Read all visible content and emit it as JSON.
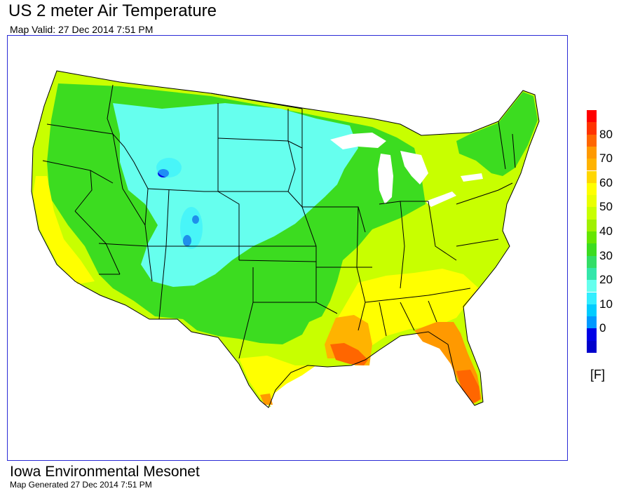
{
  "title": "US 2 meter Air Temperature",
  "subtitle": "Map Valid: 27 Dec 2014 7:51 PM",
  "legend": {
    "unit": "[F]",
    "ticks": [
      "80",
      "70",
      "60",
      "50",
      "40",
      "30",
      "20",
      "10",
      "0"
    ],
    "bands": [
      {
        "from": 85,
        "to": 90,
        "color": "#ff0000"
      },
      {
        "from": 80,
        "to": 85,
        "color": "#ff3300"
      },
      {
        "from": 75,
        "to": 80,
        "color": "#ff6600"
      },
      {
        "from": 70,
        "to": 75,
        "color": "#ff9900"
      },
      {
        "from": 65,
        "to": 70,
        "color": "#ffb300"
      },
      {
        "from": 60,
        "to": 65,
        "color": "#ffd700"
      },
      {
        "from": 55,
        "to": 60,
        "color": "#ffff00"
      },
      {
        "from": 50,
        "to": 55,
        "color": "#eaff00"
      },
      {
        "from": 45,
        "to": 50,
        "color": "#c8ff00"
      },
      {
        "from": 40,
        "to": 45,
        "color": "#a0f000"
      },
      {
        "from": 35,
        "to": 40,
        "color": "#66e600"
      },
      {
        "from": 30,
        "to": 35,
        "color": "#3cdc20"
      },
      {
        "from": 25,
        "to": 30,
        "color": "#33dd66"
      },
      {
        "from": 20,
        "to": 25,
        "color": "#33e6aa"
      },
      {
        "from": 15,
        "to": 20,
        "color": "#66ffee"
      },
      {
        "from": 10,
        "to": 15,
        "color": "#33eeff"
      },
      {
        "from": 5,
        "to": 10,
        "color": "#00ccff"
      },
      {
        "from": 0,
        "to": 5,
        "color": "#0099ff"
      },
      {
        "from": -5,
        "to": 0,
        "color": "#0000e6"
      },
      {
        "from": -10,
        "to": -5,
        "color": "#0000cc"
      }
    ]
  },
  "footer": {
    "organization": "Iowa Environmental Mesonet",
    "generated": "Map Generated 27 Dec 2014 7:51 PM"
  }
}
